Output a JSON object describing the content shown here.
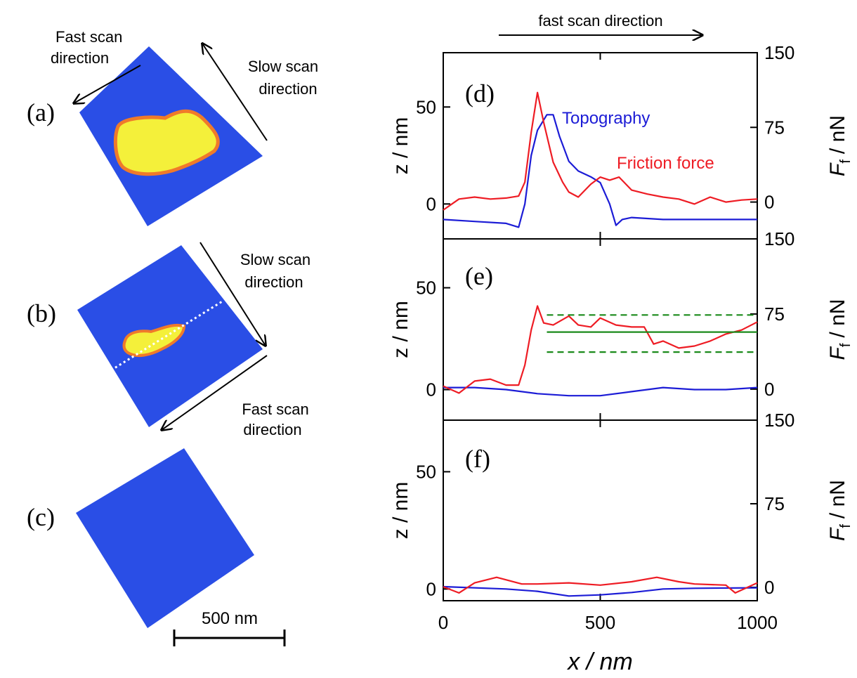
{
  "header": {
    "top_annotation": "fast scan direction"
  },
  "images": {
    "panels": [
      {
        "label": "(a)"
      },
      {
        "label": "(b)"
      },
      {
        "label": "(c)"
      }
    ],
    "fast_scan_a": [
      "Fast scan",
      "direction"
    ],
    "slow_scan_a": [
      "Slow scan",
      "direction"
    ],
    "slow_scan_b": [
      "Slow scan",
      "direction"
    ],
    "fast_scan_b": [
      "Fast scan",
      "direction"
    ],
    "scale_bar": "500 nm"
  },
  "chart_data": [
    {
      "type": "line",
      "label": "(d)",
      "xlim": [
        0,
        1000
      ],
      "ylim": [
        -18,
        78
      ],
      "yticks": [
        0,
        50
      ],
      "y2lim": [
        -37,
        150
      ],
      "y2ticks": [
        0,
        75,
        150
      ],
      "ylabel": "z / nm",
      "y2label": {
        "symbol": "F",
        "subscript": "f",
        "unit": "/ nN"
      },
      "series": [
        {
          "name": "Topography",
          "color": "#1c1cd6",
          "x": [
            0,
            100,
            200,
            240,
            260,
            280,
            300,
            330,
            350,
            370,
            400,
            430,
            470,
            500,
            530,
            550,
            570,
            600,
            700,
            800,
            900,
            1000
          ],
          "values": [
            -8,
            -9,
            -10,
            -12,
            0,
            25,
            38,
            46,
            46,
            35,
            22,
            17,
            14,
            11,
            0,
            -11,
            -8,
            -7,
            -8,
            -8,
            -8,
            -8
          ]
        },
        {
          "name": "Friction force",
          "color": "#ee1c24",
          "axis": "y2",
          "x": [
            0,
            50,
            100,
            150,
            200,
            240,
            260,
            280,
            300,
            320,
            350,
            380,
            400,
            430,
            470,
            500,
            530,
            560,
            600,
            650,
            700,
            750,
            800,
            850,
            900,
            950,
            1000
          ],
          "values": [
            -8,
            3,
            5,
            3,
            4,
            6,
            20,
            70,
            110,
            80,
            40,
            20,
            10,
            5,
            18,
            25,
            22,
            25,
            12,
            8,
            5,
            3,
            -2,
            5,
            0,
            2,
            3
          ]
        }
      ]
    },
    {
      "type": "line",
      "label": "(e)",
      "xlim": [
        0,
        1000
      ],
      "ylim": [
        -15,
        74
      ],
      "yticks": [
        0,
        50
      ],
      "y2lim": [
        -31,
        150
      ],
      "y2ticks": [
        0,
        75,
        150
      ],
      "ylabel": "z / nm",
      "y2label": {
        "symbol": "F",
        "subscript": "f",
        "unit": "/ nN"
      },
      "series": [
        {
          "color": "#1c1cd6",
          "x": [
            0,
            100,
            200,
            300,
            400,
            500,
            600,
            700,
            800,
            900,
            1000
          ],
          "values": [
            1,
            1,
            0,
            -2,
            -3,
            -3,
            -1,
            1,
            0,
            0,
            1
          ]
        },
        {
          "color": "#ee1c24",
          "axis": "y2",
          "x": [
            0,
            50,
            100,
            150,
            200,
            240,
            260,
            280,
            300,
            320,
            350,
            400,
            430,
            470,
            500,
            550,
            600,
            640,
            670,
            700,
            750,
            800,
            850,
            900,
            950,
            1000
          ],
          "values": [
            3,
            -4,
            8,
            10,
            4,
            4,
            24,
            59,
            83,
            66,
            64,
            73,
            64,
            62,
            71,
            64,
            62,
            62,
            45,
            48,
            41,
            43,
            48,
            55,
            59,
            67
          ]
        },
        {
          "color": "#1a8a1a",
          "axis": "y2",
          "x": [
            330,
            1000
          ],
          "values": [
            57,
            57
          ]
        },
        {
          "color": "#1a8a1a",
          "axis": "y2",
          "dash": true,
          "x": [
            330,
            1000
          ],
          "values": [
            74,
            74
          ]
        },
        {
          "color": "#1a8a1a",
          "axis": "y2",
          "dash": true,
          "x": [
            330,
            1000
          ],
          "values": [
            37,
            37
          ]
        }
      ]
    },
    {
      "type": "line",
      "label": "(f)",
      "xlim": [
        0,
        1000
      ],
      "xticks": [
        0,
        500,
        1000
      ],
      "xlabel": "x / nm",
      "ylim": [
        -5,
        72
      ],
      "yticks": [
        0,
        50
      ],
      "y2lim": [
        -12,
        150
      ],
      "y2ticks": [
        0,
        75,
        150
      ],
      "ylabel": "z / nm",
      "y2label": {
        "symbol": "F",
        "subscript": "f",
        "unit": "/ nN"
      },
      "series": [
        {
          "color": "#1c1cd6",
          "x": [
            0,
            200,
            300,
            400,
            500,
            600,
            700,
            800,
            1000
          ],
          "values": [
            1,
            0,
            -1,
            -3,
            -2.5,
            -1.5,
            0,
            0.3,
            0.5
          ]
        },
        {
          "color": "#ee1c24",
          "axis": "y2",
          "x": [
            0,
            50,
            100,
            170,
            250,
            300,
            400,
            500,
            600,
            680,
            750,
            800,
            900,
            930,
            1000
          ],
          "values": [
            0.5,
            -5,
            4,
            9,
            3,
            3,
            4,
            2,
            5,
            9,
            5,
            3,
            2,
            -5,
            4
          ]
        }
      ]
    }
  ]
}
